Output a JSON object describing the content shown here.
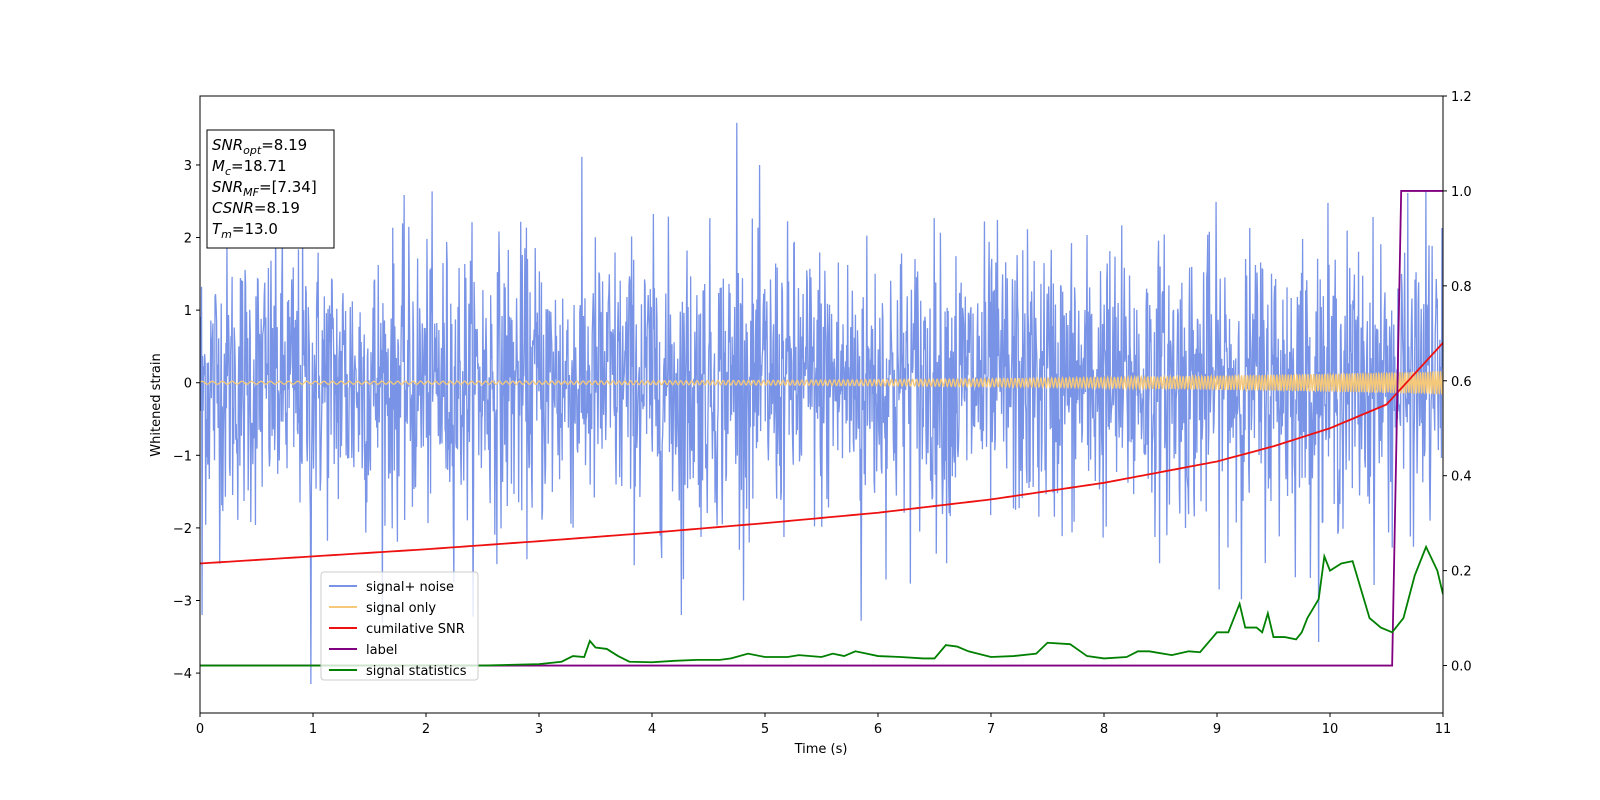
{
  "chart_data": {
    "type": "line",
    "xlabel": "Time (s)",
    "ylabel": "Whitened strain",
    "xlim": [
      0,
      11
    ],
    "ylim": [
      -4.55,
      3.95
    ],
    "y2lim": [
      -0.1,
      1.2
    ],
    "xticks": [
      "0",
      "1",
      "2",
      "3",
      "4",
      "5",
      "6",
      "7",
      "8",
      "9",
      "10",
      "11"
    ],
    "yticks": [
      "−4",
      "−3",
      "−2",
      "−1",
      "0",
      "1",
      "2",
      "3"
    ],
    "y2ticks": [
      "0.0",
      "0.2",
      "0.4",
      "0.6",
      "0.8",
      "1.0",
      "1.2"
    ],
    "legend_position": "lower-left",
    "info_box": {
      "lines": [
        {
          "sym": "SNR",
          "sub": "opt",
          "val": "=8.19"
        },
        {
          "sym": "M",
          "sub": "c",
          "val": "=18.71"
        },
        {
          "sym": "SNR",
          "sub": "MF",
          "val": "=[7.34]"
        },
        {
          "sym": "CSNR",
          "sub": "",
          "val": "=8.19"
        },
        {
          "sym": "T",
          "sub": "m",
          "val": "=13.0"
        }
      ]
    },
    "series": [
      {
        "name": "signal+ noise",
        "color": "#7994e6",
        "axis": "left",
        "description": "whitened noisy strain, approx. zero mean, range about -4.2 to 3.6",
        "peaks": [
          {
            "x": 0.98,
            "y": -4.15
          },
          {
            "x": 4.75,
            "y": 3.58
          },
          {
            "x": 5.85,
            "y": -3.28
          },
          {
            "x": 4.26,
            "y": -3.2
          },
          {
            "x": 0.02,
            "y": -3.2
          },
          {
            "x": 10.85,
            "y": 2.65
          }
        ]
      },
      {
        "name": "signal only",
        "color": "#f5c87a",
        "axis": "left",
        "description": "chirp with growing amplitude; amplitude ~0.02 at t=0 to ~0.16 at t=11"
      },
      {
        "name": "cumilative SNR",
        "color": "#ee1111",
        "axis": "right",
        "x": [
          0,
          1,
          2,
          3,
          4,
          5,
          6,
          7,
          8,
          9,
          9.5,
          10,
          10.5,
          11
        ],
        "y": [
          0.215,
          0.23,
          0.245,
          0.262,
          0.28,
          0.3,
          0.322,
          0.35,
          0.385,
          0.43,
          0.462,
          0.5,
          0.55,
          0.68
        ]
      },
      {
        "name": "label",
        "color": "#800080",
        "axis": "right",
        "x": [
          0,
          10.55,
          10.63,
          11
        ],
        "y": [
          0,
          0,
          1,
          1
        ]
      },
      {
        "name": "signal statistics",
        "color": "#008000",
        "axis": "right",
        "x": [
          0,
          1,
          2,
          2.5,
          3,
          3.2,
          3.3,
          3.4,
          3.45,
          3.5,
          3.6,
          3.7,
          3.8,
          4,
          4.2,
          4.4,
          4.6,
          4.7,
          4.85,
          5,
          5.2,
          5.3,
          5.5,
          5.6,
          5.7,
          5.8,
          5.9,
          6,
          6.2,
          6.4,
          6.5,
          6.6,
          6.7,
          6.8,
          7,
          7.2,
          7.4,
          7.5,
          7.7,
          7.85,
          8,
          8.2,
          8.3,
          8.4,
          8.6,
          8.75,
          8.85,
          9,
          9.1,
          9.2,
          9.25,
          9.35,
          9.4,
          9.45,
          9.5,
          9.6,
          9.7,
          9.75,
          9.8,
          9.9,
          9.95,
          10.0,
          10.1,
          10.2,
          10.35,
          10.45,
          10.55,
          10.65,
          10.75,
          10.85,
          10.95,
          11
        ],
        "y": [
          0.0,
          0.0,
          0.0,
          0.0,
          0.003,
          0.008,
          0.02,
          0.018,
          0.052,
          0.038,
          0.035,
          0.02,
          0.008,
          0.007,
          0.01,
          0.012,
          0.012,
          0.015,
          0.025,
          0.018,
          0.018,
          0.022,
          0.018,
          0.025,
          0.02,
          0.03,
          0.025,
          0.02,
          0.018,
          0.015,
          0.015,
          0.043,
          0.04,
          0.03,
          0.018,
          0.02,
          0.025,
          0.048,
          0.045,
          0.02,
          0.015,
          0.018,
          0.03,
          0.03,
          0.022,
          0.03,
          0.028,
          0.07,
          0.07,
          0.13,
          0.08,
          0.08,
          0.07,
          0.11,
          0.06,
          0.06,
          0.055,
          0.07,
          0.1,
          0.14,
          0.23,
          0.2,
          0.215,
          0.22,
          0.1,
          0.08,
          0.07,
          0.1,
          0.19,
          0.25,
          0.2,
          0.15
        ]
      }
    ]
  }
}
